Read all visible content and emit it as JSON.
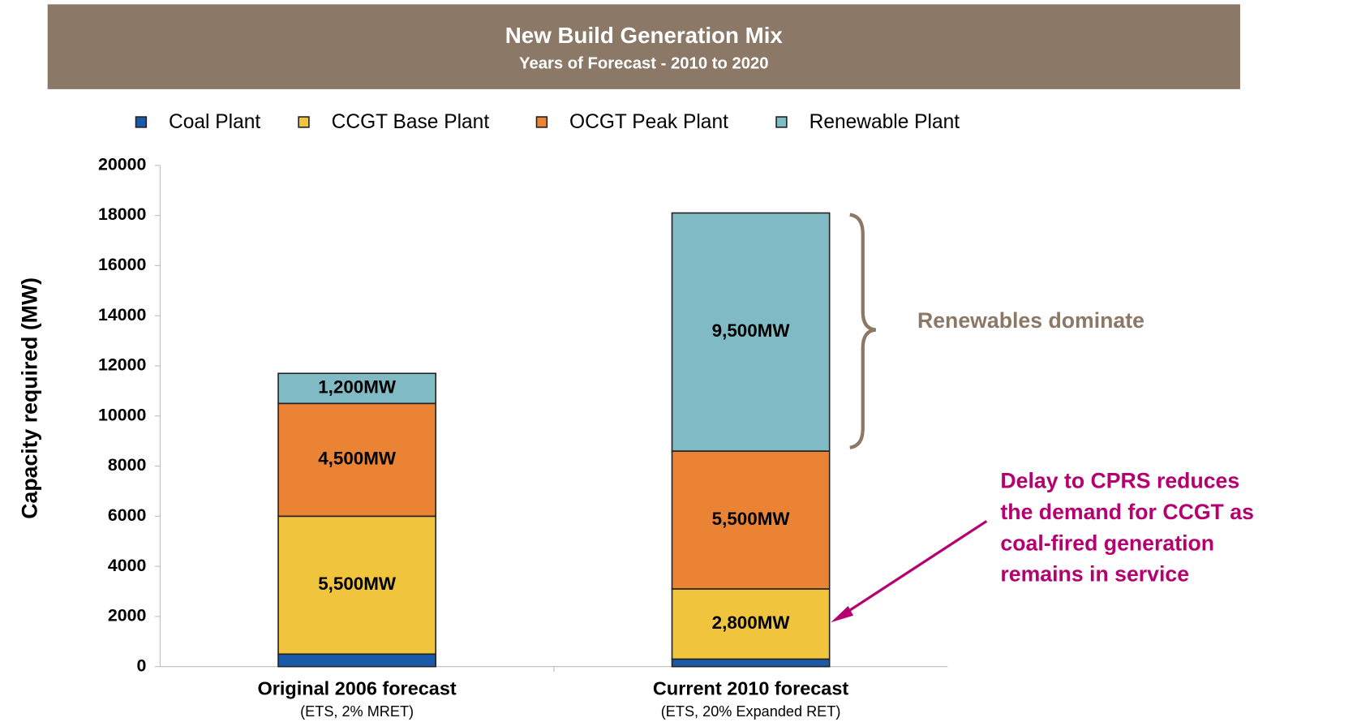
{
  "chart_data": {
    "type": "stacked_bar",
    "title": "New Build Generation Mix",
    "subtitle": "Years of Forecast - 2010 to 2020",
    "ylabel": "Capacity required (MW)",
    "categories": [
      "Original 2006 forecast",
      "Current 2010 forecast"
    ],
    "category_notes": [
      "(ETS, 2% MRET)",
      "(ETS, 20% Expanded RET)"
    ],
    "series": [
      {
        "name": "Coal Plant",
        "color": "#1a5aa8",
        "values": [
          500,
          300
        ]
      },
      {
        "name": "CCGT Base Plant",
        "color": "#f0c43c",
        "values": [
          5500,
          2800
        ],
        "value_labels": [
          "5,500MW",
          "2,800MW"
        ]
      },
      {
        "name": "OCGT Peak Plant",
        "color": "#ea8333",
        "values": [
          4500,
          5500
        ],
        "value_labels": [
          "4,500MW",
          "5,500MW"
        ]
      },
      {
        "name": "Renewable Plant",
        "color": "#80bac4",
        "values": [
          1200,
          9500
        ],
        "value_labels": [
          "1,200MW",
          "9,500MW"
        ]
      }
    ],
    "ylim": [
      0,
      20000
    ],
    "yticks": [
      0,
      2000,
      4000,
      6000,
      8000,
      10000,
      12000,
      14000,
      16000,
      18000,
      20000
    ],
    "legend": "top",
    "annotations": {
      "brace": "Renewables dominate",
      "arrow": [
        "Delay to CPRS reduces",
        "the demand for CCGT as",
        "coal-fired generation",
        "remains in service"
      ]
    }
  }
}
